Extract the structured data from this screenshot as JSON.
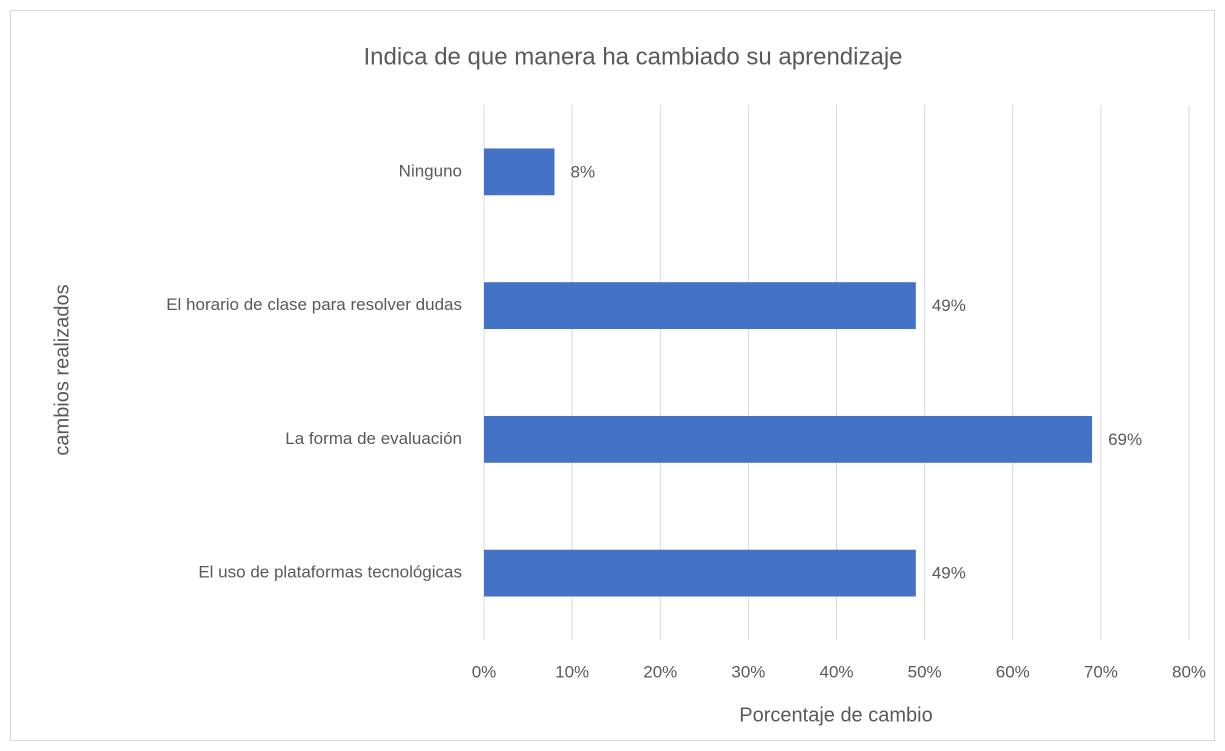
{
  "chart_data": {
    "type": "bar",
    "orientation": "horizontal",
    "title": "Indica de que manera ha cambiado su aprendizaje",
    "x_label": "Porcentaje de cambio",
    "y_label": "cambios realizados",
    "categories": [
      "Ninguno",
      "El horario de clase para resolver dudas",
      "La forma de evaluación",
      "El uso de plataformas tecnológicas"
    ],
    "values": [
      8,
      49,
      69,
      49
    ],
    "value_labels": [
      "8%",
      "49%",
      "69%",
      "49%"
    ],
    "color": "#4472c4",
    "xlim": [
      0,
      80
    ],
    "xticks": [
      {
        "value": 0,
        "label": "0%"
      },
      {
        "value": 10,
        "label": "10%"
      },
      {
        "value": 20,
        "label": "20%"
      },
      {
        "value": 30,
        "label": "30%"
      },
      {
        "value": 40,
        "label": "40%"
      },
      {
        "value": 50,
        "label": "50%"
      },
      {
        "value": 60,
        "label": "60%"
      },
      {
        "value": 70,
        "label": "70%"
      },
      {
        "value": 80,
        "label": "80%"
      }
    ],
    "grid": true
  }
}
